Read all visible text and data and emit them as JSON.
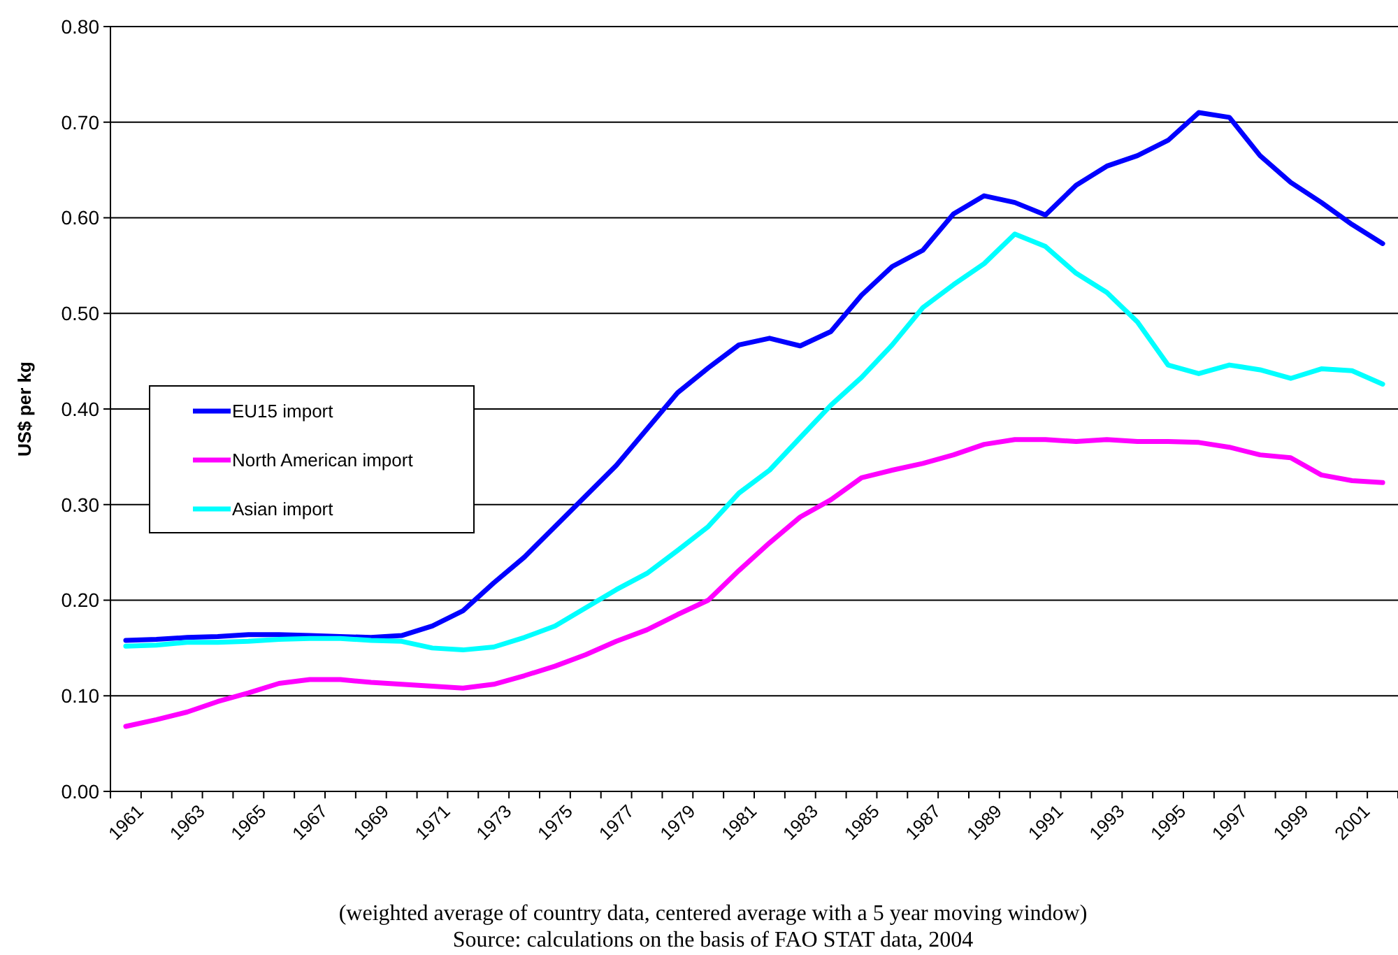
{
  "chart_data": {
    "type": "line",
    "ylabel": "US$ per kg",
    "categories": [
      "1961",
      null,
      "1963",
      null,
      "1965",
      null,
      "1967",
      null,
      "1969",
      null,
      "1971",
      null,
      "1973",
      null,
      "1975",
      null,
      "1977",
      null,
      "1979",
      null,
      "1981",
      null,
      "1983",
      null,
      "1985",
      null,
      "1987",
      null,
      "1989",
      null,
      "1991",
      null,
      "1993",
      null,
      "1995",
      null,
      "1997",
      null,
      "1999",
      null,
      "2001",
      null
    ],
    "series": [
      {
        "name": "EU15 import",
        "color": "#0000ff",
        "values": [
          0.158,
          0.159,
          0.161,
          0.162,
          0.164,
          0.164,
          0.163,
          0.162,
          0.161,
          0.163,
          0.173,
          0.189,
          0.218,
          0.245,
          0.277,
          0.309,
          0.341,
          0.379,
          0.417,
          0.443,
          0.467,
          0.474,
          0.466,
          0.481,
          0.519,
          0.549,
          0.566,
          0.604,
          0.623,
          0.616,
          0.603,
          0.634,
          0.654,
          0.665,
          0.681,
          0.71,
          0.705,
          0.665,
          0.637,
          0.616,
          0.593,
          0.573
        ]
      },
      {
        "name": "North American import",
        "color": "#ff00ff",
        "values": [
          0.068,
          0.075,
          0.083,
          0.094,
          0.103,
          0.113,
          0.117,
          0.117,
          0.114,
          0.112,
          0.11,
          0.108,
          0.112,
          0.121,
          0.131,
          0.143,
          0.157,
          0.169,
          0.185,
          0.2,
          0.231,
          0.26,
          0.287,
          0.305,
          0.328,
          0.336,
          0.343,
          0.352,
          0.363,
          0.368,
          0.368,
          0.366,
          0.368,
          0.366,
          0.366,
          0.365,
          0.36,
          0.352,
          0.349,
          0.331,
          0.325,
          0.323
        ]
      },
      {
        "name": "Asian import",
        "color": "#00ffff",
        "values": [
          0.152,
          0.153,
          0.156,
          0.156,
          0.157,
          0.159,
          0.16,
          0.16,
          0.158,
          0.157,
          0.15,
          0.148,
          0.151,
          0.161,
          0.173,
          0.192,
          0.211,
          0.228,
          0.252,
          0.277,
          0.312,
          0.336,
          0.37,
          0.404,
          0.433,
          0.467,
          0.506,
          0.53,
          0.552,
          0.583,
          0.57,
          0.542,
          0.522,
          0.491,
          0.446,
          0.437,
          0.446,
          0.441,
          0.432,
          0.442,
          0.44,
          0.426
        ]
      }
    ],
    "ylim": [
      0,
      0.8
    ],
    "yticks": [
      {
        "value": 0,
        "label": "0.00"
      },
      {
        "value": 0.1,
        "label": "0.10"
      },
      {
        "value": 0.2,
        "label": "0.20"
      },
      {
        "value": 0.3,
        "label": "0.30"
      },
      {
        "value": 0.4,
        "label": "0.40"
      },
      {
        "value": 0.5,
        "label": "0.50"
      },
      {
        "value": 0.6,
        "label": "0.60"
      },
      {
        "value": 0.7,
        "label": "0.70"
      },
      {
        "value": 0.8,
        "label": "0.80"
      }
    ],
    "grid": "y",
    "legend": "left",
    "marker": "none",
    "line_style": "solid",
    "annotations": [
      "(weighted average of country data, centered average with a 5 year moving window)",
      "Source: calculations on the basis of FAO STAT data, 2004"
    ]
  }
}
